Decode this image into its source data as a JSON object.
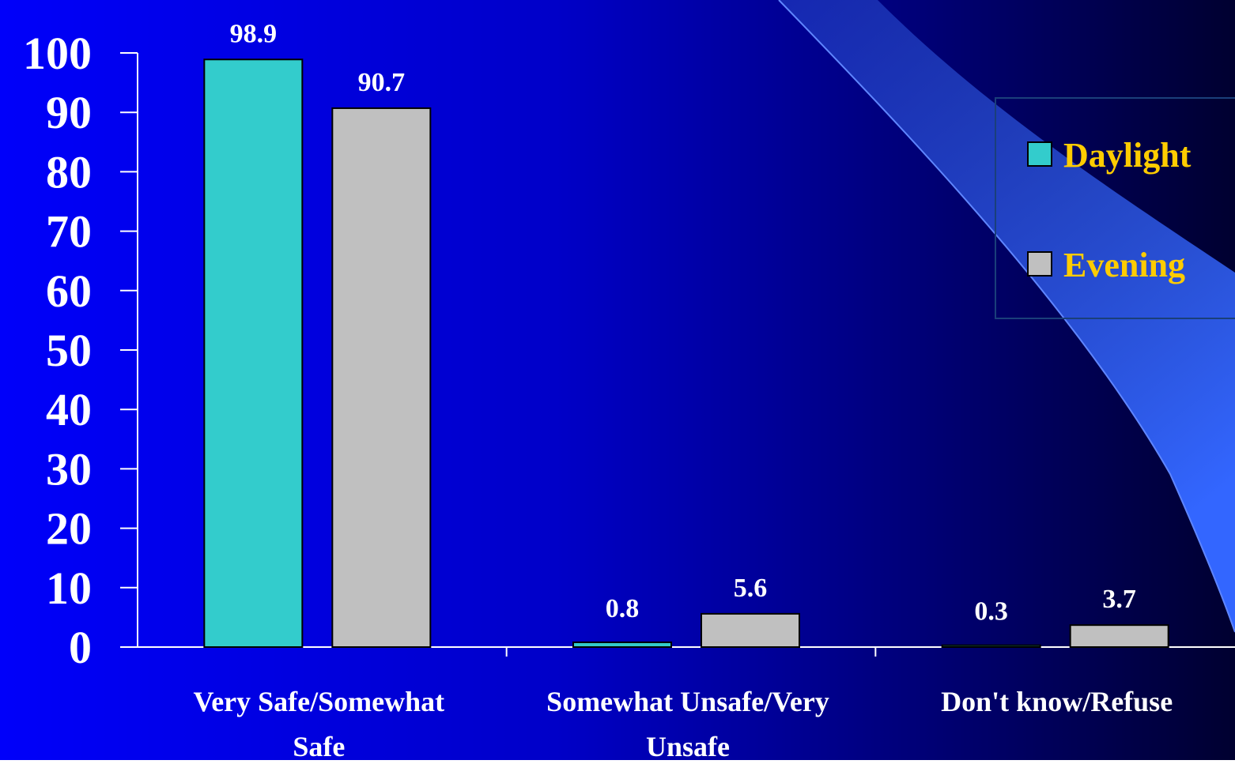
{
  "chart_data": {
    "type": "bar",
    "categories": [
      [
        "Very Safe/Somewhat",
        "Safe"
      ],
      [
        "Somewhat Unsafe/Very",
        "Unsafe"
      ],
      [
        "Don't know/Refuse"
      ]
    ],
    "series": [
      {
        "name": "Daylight",
        "color": "#33cccc",
        "values": [
          98.9,
          0.8,
          0.3
        ],
        "labels": [
          "98.9",
          "0.8",
          "0.3"
        ]
      },
      {
        "name": "Evening",
        "color": "#c0c0c0",
        "values": [
          90.7,
          5.6,
          3.7
        ],
        "labels": [
          "90.7",
          "5.6",
          "3.7"
        ]
      }
    ],
    "yticks": [
      "0",
      "10",
      "20",
      "30",
      "40",
      "50",
      "60",
      "70",
      "80",
      "90",
      "100"
    ],
    "ylim": [
      0,
      100
    ],
    "grid": false,
    "legend_position": "right",
    "title": "",
    "xlabel": "",
    "ylabel": ""
  },
  "colors": {
    "background_start": "#0000ff",
    "background_end": "#000033",
    "accent_swoosh": "#3366ff",
    "legend_text": "#ffcc00"
  }
}
